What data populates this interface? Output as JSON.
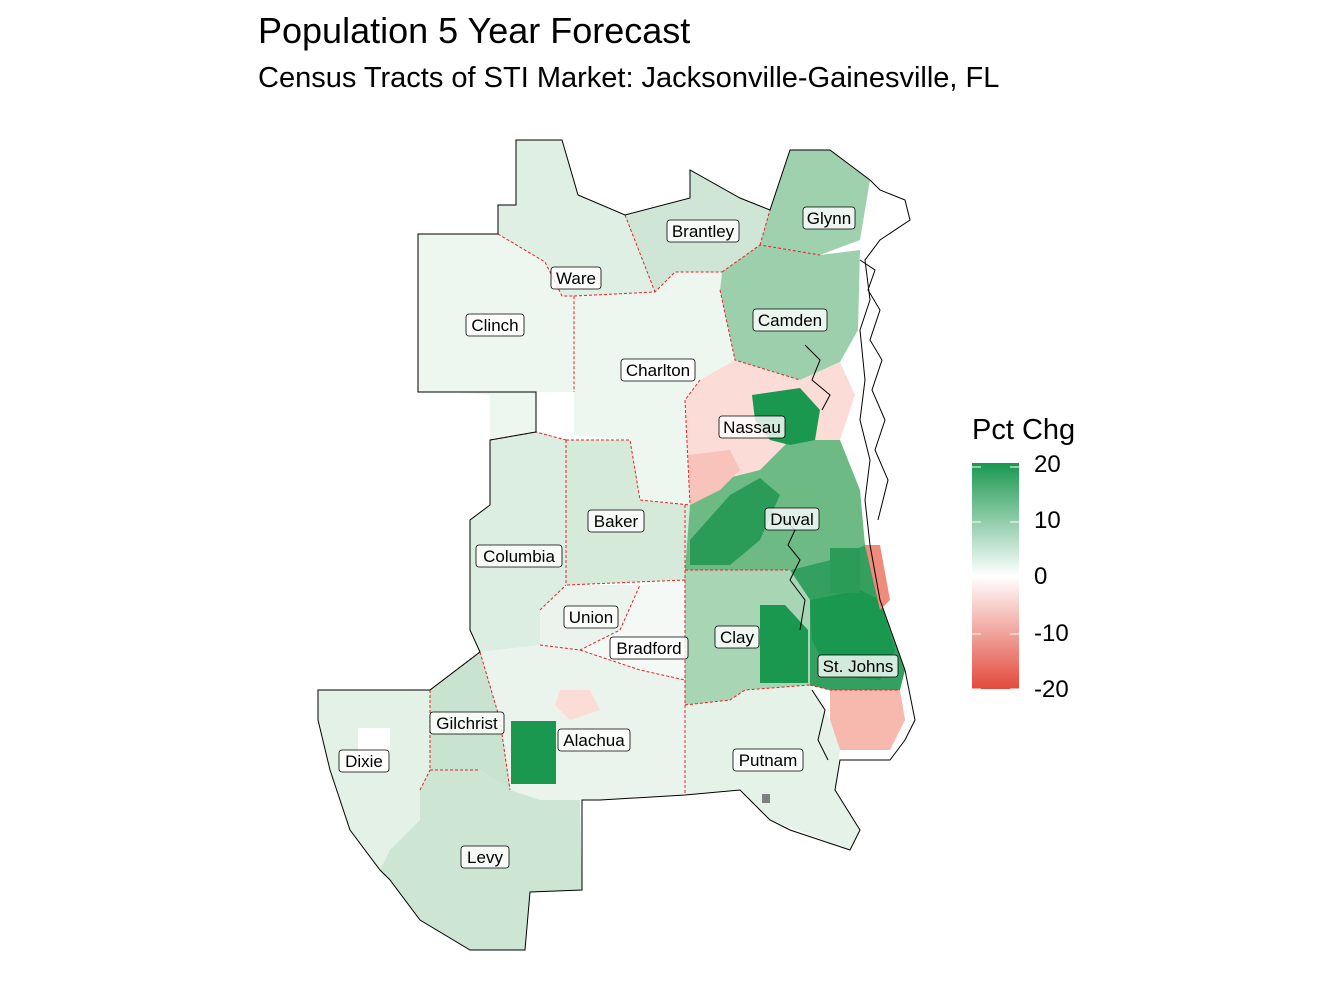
{
  "title": "Population 5 Year Forecast",
  "subtitle": "Census Tracts of STI Market: Jacksonville-Gainesville, FL",
  "legend": {
    "title": "Pct Chg",
    "ticks": [
      "20",
      "10",
      "0",
      "-10",
      "-20"
    ],
    "min": -20,
    "max": 20,
    "low_color": "#e24a3b",
    "mid_color": "#ffffff",
    "high_color": "#1a9850"
  },
  "colors": {
    "county_border": "#e8212b",
    "coast": "#000000",
    "na_tract": "#7f7f7f"
  },
  "counties": [
    {
      "name": "Brantley",
      "pct_chg": 6
    },
    {
      "name": "Glynn",
      "pct_chg": 10
    },
    {
      "name": "Ware",
      "pct_chg": 3
    },
    {
      "name": "Clinch",
      "pct_chg": 2
    },
    {
      "name": "Camden",
      "pct_chg": 11
    },
    {
      "name": "Charlton",
      "pct_chg": 2
    },
    {
      "name": "Nassau",
      "pct_chg": -3
    },
    {
      "name": "Baker",
      "pct_chg": 5
    },
    {
      "name": "Duval",
      "pct_chg": 8
    },
    {
      "name": "Columbia",
      "pct_chg": 5
    },
    {
      "name": "Union",
      "pct_chg": 4
    },
    {
      "name": "Bradford",
      "pct_chg": 1
    },
    {
      "name": "Clay",
      "pct_chg": 7
    },
    {
      "name": "St. Johns",
      "pct_chg": 14
    },
    {
      "name": "Gilchrist",
      "pct_chg": 7
    },
    {
      "name": "Alachua",
      "pct_chg": 3
    },
    {
      "name": "Dixie",
      "pct_chg": 4
    },
    {
      "name": "Putnam",
      "pct_chg": 2
    },
    {
      "name": "Levy",
      "pct_chg": 6
    }
  ]
}
